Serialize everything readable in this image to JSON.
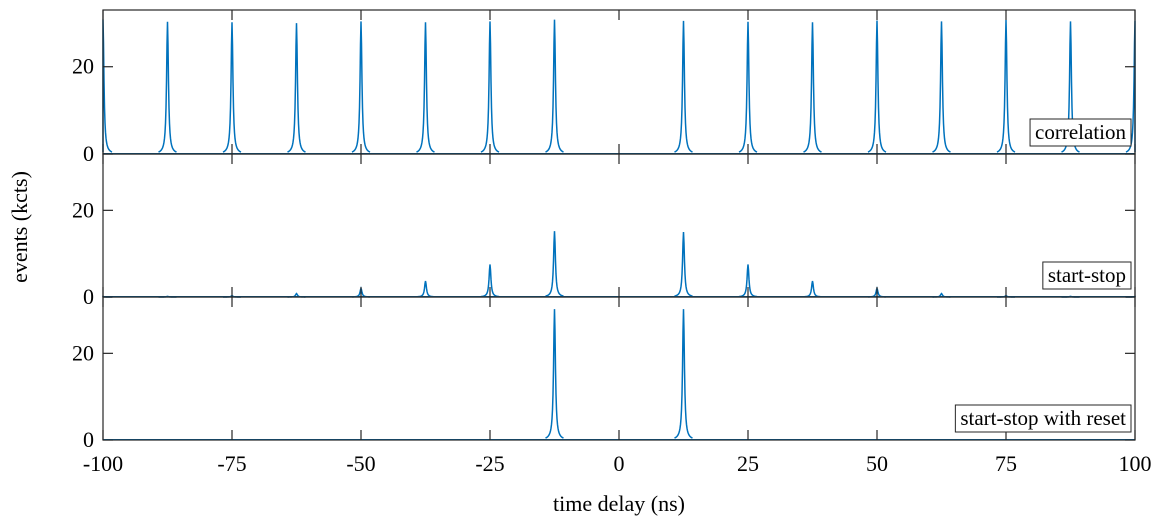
{
  "chart_data": {
    "type": "line",
    "xlabel": "time delay (ns)",
    "ylabel": "events (kcts)",
    "xlim": [
      -100,
      100
    ],
    "xticks": [
      -100,
      -75,
      -50,
      -25,
      0,
      25,
      50,
      75,
      100
    ],
    "yticks": [
      0,
      20
    ],
    "ylim": [
      0,
      33
    ],
    "peak_period_ns": 12.5,
    "line_color": "#0072BD",
    "panels": [
      {
        "label": "correlation",
        "peaks": [
          {
            "x": -100,
            "y": 30.8
          },
          {
            "x": -87.5,
            "y": 30.3
          },
          {
            "x": -75,
            "y": 30.2
          },
          {
            "x": -62.5,
            "y": 30.0
          },
          {
            "x": -50,
            "y": 30.4
          },
          {
            "x": -37.5,
            "y": 30.2
          },
          {
            "x": -25,
            "y": 30.4
          },
          {
            "x": -12.5,
            "y": 30.8
          },
          {
            "x": 12.5,
            "y": 30.5
          },
          {
            "x": 25,
            "y": 30.3
          },
          {
            "x": 37.5,
            "y": 30.2
          },
          {
            "x": 50,
            "y": 30.6
          },
          {
            "x": 62.5,
            "y": 30.4
          },
          {
            "x": 75,
            "y": 30.7
          },
          {
            "x": 87.5,
            "y": 30.4
          },
          {
            "x": 100,
            "y": 30.6
          }
        ]
      },
      {
        "label": "start-stop",
        "peaks": [
          {
            "x": -100,
            "y": 0.1
          },
          {
            "x": -87.5,
            "y": 0.15
          },
          {
            "x": -75,
            "y": 0.3
          },
          {
            "x": -62.5,
            "y": 0.8
          },
          {
            "x": -50,
            "y": 2.0
          },
          {
            "x": -37.5,
            "y": 3.7
          },
          {
            "x": -25,
            "y": 7.5
          },
          {
            "x": -12.5,
            "y": 15.2
          },
          {
            "x": 12.5,
            "y": 15.0
          },
          {
            "x": 25,
            "y": 7.5
          },
          {
            "x": 37.5,
            "y": 3.7
          },
          {
            "x": 50,
            "y": 2.0
          },
          {
            "x": 62.5,
            "y": 0.8
          },
          {
            "x": 75,
            "y": 0.3
          },
          {
            "x": 87.5,
            "y": 0.15
          },
          {
            "x": 100,
            "y": 0.1
          }
        ]
      },
      {
        "label": "start-stop with reset",
        "peaks": [
          {
            "x": -12.5,
            "y": 30.2
          },
          {
            "x": 12.5,
            "y": 30.2
          }
        ]
      }
    ]
  }
}
